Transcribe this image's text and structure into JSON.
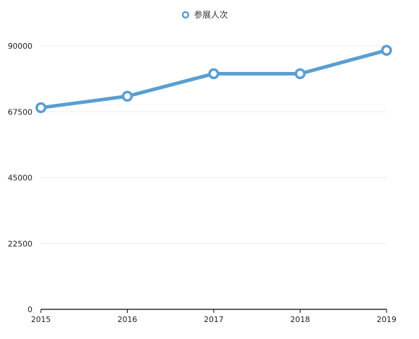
{
  "chart_data": {
    "type": "line",
    "title": "",
    "xlabel": "",
    "ylabel": "",
    "categories": [
      "2015",
      "2016",
      "2017",
      "2018",
      "2019"
    ],
    "series": [
      {
        "name": "参展人次",
        "values": [
          68900,
          72800,
          80500,
          80500,
          88500
        ],
        "color": "#5a9ed0"
      }
    ],
    "ylim": [
      0,
      90000
    ],
    "y_ticks": [
      0,
      22500,
      45000,
      67500,
      90000
    ],
    "y_tick_labels": [
      "0",
      "22500",
      "45000",
      "67500",
      "90000"
    ],
    "grid": true,
    "legend_position": "top-center",
    "colors": {
      "grid": "#ececec",
      "axis": "#000000",
      "marker_fill": "#ffffff"
    }
  }
}
